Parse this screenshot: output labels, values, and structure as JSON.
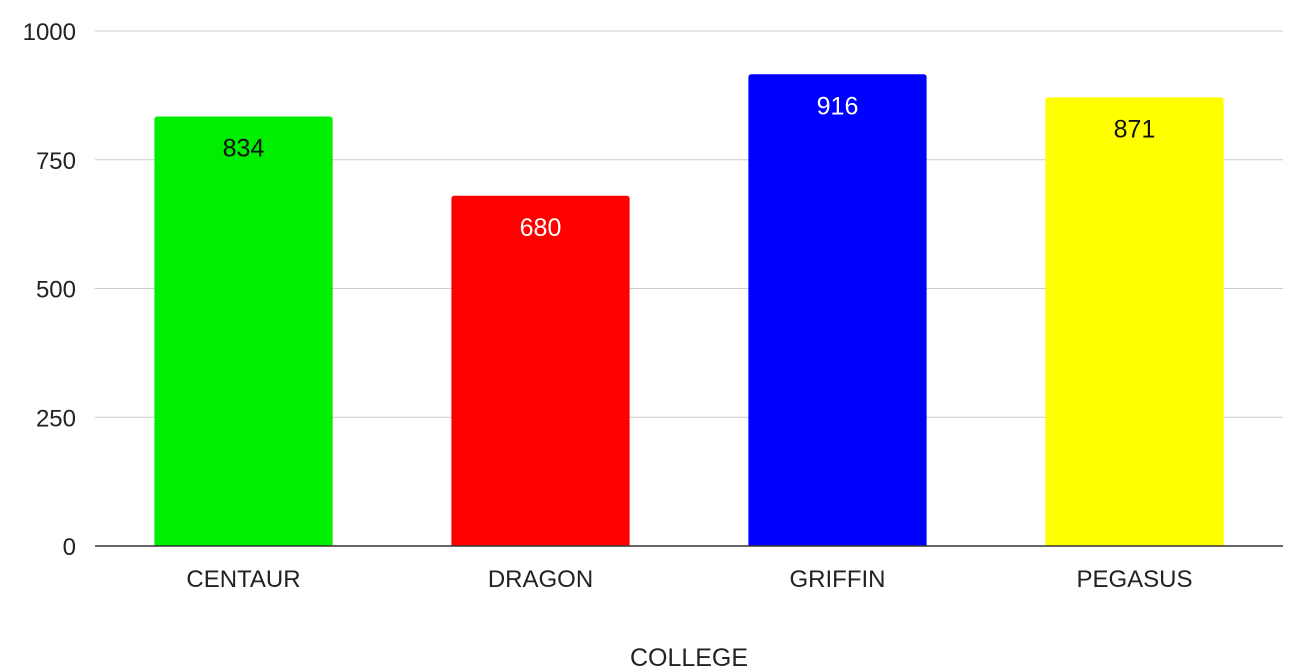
{
  "chart_data": {
    "type": "bar",
    "categories": [
      "CENTAUR",
      "DRAGON",
      "GRIFFIN",
      "PEGASUS"
    ],
    "values": [
      834,
      680,
      916,
      871
    ],
    "bar_colors": [
      "#00ee00",
      "#ff0000",
      "#0000ff",
      "#ffff00"
    ],
    "label_colors": [
      "#111111",
      "#ffffff",
      "#ffffff",
      "#111111"
    ],
    "data_labels": [
      "834",
      "680",
      "916",
      "871"
    ],
    "title": "",
    "xlabel": "COLLEGE",
    "ylabel": "",
    "ylim": [
      0,
      1000
    ],
    "yticks": [
      0,
      250,
      500,
      750,
      1000
    ],
    "ytick_labels": [
      "0",
      "250",
      "500",
      "750",
      "1000"
    ],
    "grid": true,
    "legend": "none"
  }
}
